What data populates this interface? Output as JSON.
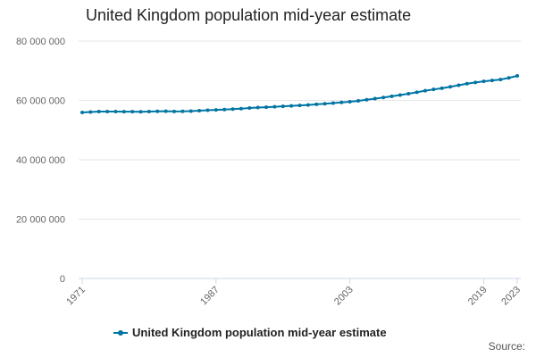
{
  "chart_data": {
    "type": "line",
    "title": "United Kingdom population mid-year estimate",
    "xlabel": "",
    "ylabel": "",
    "xlim": [
      1971,
      2023
    ],
    "ylim": [
      0,
      80000000
    ],
    "y_ticks": [
      {
        "value": 0,
        "label": "0"
      },
      {
        "value": 20000000,
        "label": "20 000 000"
      },
      {
        "value": 40000000,
        "label": "40 000 000"
      },
      {
        "value": 60000000,
        "label": "60 000 000"
      },
      {
        "value": 80000000,
        "label": "80 000 000"
      }
    ],
    "x_tick_labels": [
      "1971",
      "1987",
      "2003",
      "2019",
      "2023"
    ],
    "grid": true,
    "legend_position": "bottom",
    "series": [
      {
        "name": "United Kingdom population mid-year estimate",
        "color": "#0075a3",
        "x": [
          1971,
          1972,
          1973,
          1974,
          1975,
          1976,
          1977,
          1978,
          1979,
          1980,
          1981,
          1982,
          1983,
          1984,
          1985,
          1986,
          1987,
          1988,
          1989,
          1990,
          1991,
          1992,
          1993,
          1994,
          1995,
          1996,
          1997,
          1998,
          1999,
          2000,
          2001,
          2002,
          2003,
          2004,
          2005,
          2006,
          2007,
          2008,
          2009,
          2010,
          2011,
          2012,
          2013,
          2014,
          2015,
          2016,
          2017,
          2018,
          2019,
          2020,
          2021,
          2022,
          2023
        ],
        "values": [
          55928000,
          56097000,
          56223000,
          56236000,
          56226000,
          56216000,
          56190000,
          56178000,
          56240000,
          56330000,
          56357000,
          56291000,
          56316000,
          56409000,
          56554000,
          56684000,
          56804000,
          56916000,
          57076000,
          57237000,
          57439000,
          57585000,
          57714000,
          57862000,
          58025000,
          58164000,
          58314000,
          58475000,
          58684000,
          58886000,
          59113000,
          59319000,
          59552000,
          59842000,
          60235000,
          60584000,
          60986000,
          61398000,
          61792000,
          62260000,
          62759000,
          63285000,
          63705000,
          64106000,
          64597000,
          65110000,
          65648000,
          66040000,
          66436000,
          66744000,
          67026000,
          67596000,
          68265000
        ]
      }
    ]
  },
  "legend": {
    "label": "United Kingdom population mid-year estimate"
  },
  "source_label": "Source:"
}
